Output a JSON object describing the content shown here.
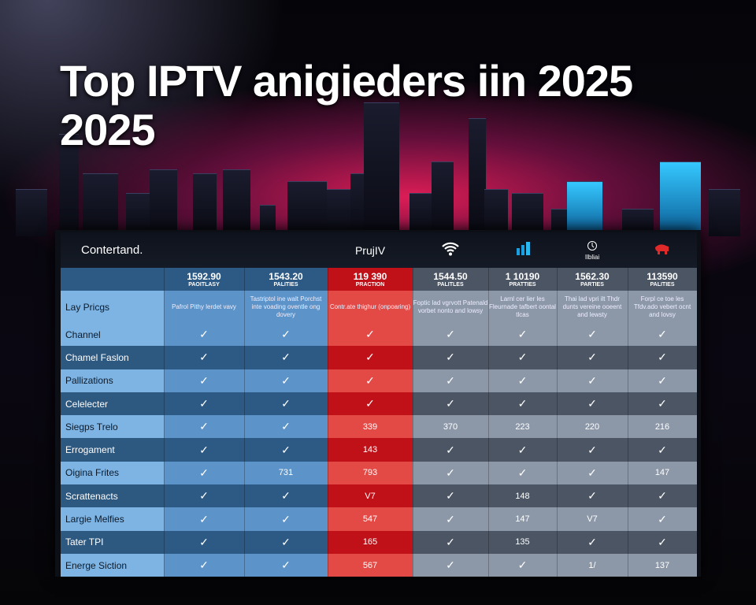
{
  "title": {
    "line1": "Top IPTV anigieders iin 2025",
    "line2": "2025"
  },
  "header": {
    "brand": "Contertand.",
    "columns": [
      {
        "label": "",
        "icon": ""
      },
      {
        "label": "",
        "icon": ""
      },
      {
        "label": "PrujIV",
        "icon": ""
      },
      {
        "label": "",
        "icon": "wifi-icon"
      },
      {
        "label": "",
        "icon": "signal-bars-icon"
      },
      {
        "label": "Ilbliai",
        "icon": "clock-icon"
      },
      {
        "label": "",
        "icon": "elephant-icon"
      }
    ]
  },
  "colors": {
    "blue_dark": "#2d5a84",
    "blue_light": "#5c93c8",
    "red_dark": "#c01018",
    "red_light": "#e44a45",
    "gray_dark": "#4b5563",
    "gray_light": "#8c98a8",
    "label_light": "#7db4e4",
    "label_dark": "#2d5880"
  },
  "prices": [
    {
      "value": "1592.90",
      "sub": "PAOITLASY"
    },
    {
      "value": "1543.20",
      "sub": "PALITIES"
    },
    {
      "value": "119 390",
      "sub": "PRACTION"
    },
    {
      "value": "1544.50",
      "sub": "PALITLES"
    },
    {
      "value": "1 10190",
      "sub": "PRATTIES"
    },
    {
      "value": "1562.30",
      "sub": "PARTIES"
    },
    {
      "value": "113590",
      "sub": "PALITIES"
    }
  ],
  "desc_row": {
    "label": "Lay Pricgs",
    "cells": [
      "Pafrol Pithy lerdet vavy",
      "Tastriptol ine walt Porchst inte voading oventle ong dovery",
      "Contr.ate thighur (onpoaring)",
      "Foptic lad vgrvott Patenald vorbet nonto and lowsy",
      "Larnl cer lier les Fleurnade tafbert oontal tlcas",
      "Thai lad vpri ilt Thdr dunts vereine ooeent and lewsty",
      "Forpl ce toe les Tfdv.ado vebert ocnt and lovsy"
    ]
  },
  "rows": [
    {
      "label": "Channel",
      "cells": [
        "✓",
        "✓",
        "✓",
        "✓",
        "✓",
        "✓",
        "✓"
      ]
    },
    {
      "label": "Chamel Faslon",
      "cells": [
        "✓",
        "✓",
        "✓",
        "✓",
        "✓",
        "✓",
        "✓"
      ]
    },
    {
      "label": "Pallizations",
      "cells": [
        "✓",
        "✓",
        "✓",
        "✓",
        "✓",
        "✓",
        "✓"
      ]
    },
    {
      "label": "Celelecter",
      "cells": [
        "✓",
        "✓",
        "✓",
        "✓",
        "✓",
        "✓",
        "✓"
      ]
    },
    {
      "label": "Siegps Trelo",
      "cells": [
        "✓",
        "✓",
        "339",
        "370",
        "223",
        "220",
        "216"
      ]
    },
    {
      "label": "Errogament",
      "cells": [
        "✓",
        "✓",
        "143",
        "✓",
        "✓",
        "✓",
        "✓"
      ]
    },
    {
      "label": "Oigina Frites",
      "cells": [
        "✓",
        "731",
        "793",
        "✓",
        "✓",
        "✓",
        "147"
      ]
    },
    {
      "label": "Scrattenacts",
      "cells": [
        "✓",
        "✓",
        "V7",
        "✓",
        "148",
        "✓",
        "✓"
      ]
    },
    {
      "label": "Largie Melfies",
      "cells": [
        "✓",
        "✓",
        "547",
        "✓",
        "147",
        "V7",
        "✓"
      ]
    },
    {
      "label": "Tater TPI",
      "cells": [
        "✓",
        "✓",
        "165",
        "✓",
        "135",
        "✓",
        "✓"
      ]
    },
    {
      "label": "Energe Siction",
      "cells": [
        "✓",
        "✓",
        "567",
        "✓",
        "✓",
        "1/",
        "137"
      ]
    }
  ]
}
